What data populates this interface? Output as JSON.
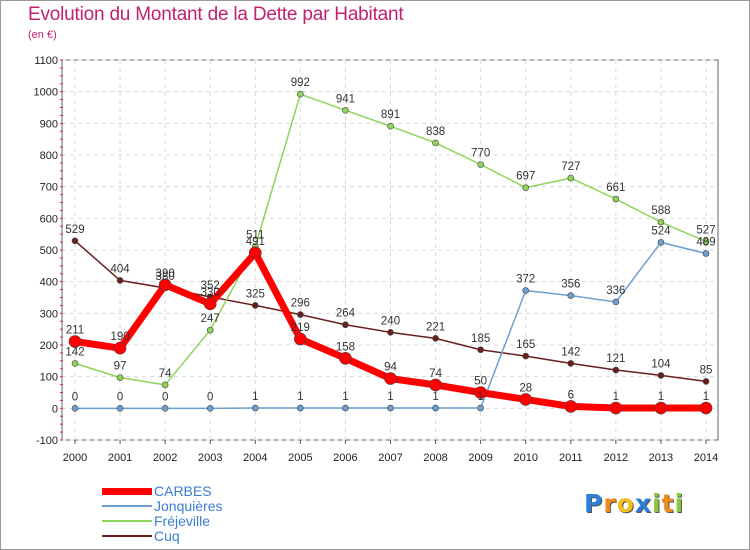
{
  "header": {
    "title": "Evolution du Montant de la Dette par Habitant",
    "unit": "(en €)"
  },
  "chart_data": {
    "type": "line",
    "title": "Evolution du Montant de la Dette par Habitant",
    "ylabel": "(en €)",
    "xlabel": "",
    "x": [
      "2000",
      "2001",
      "2002",
      "2003",
      "2004",
      "2005",
      "2006",
      "2007",
      "2008",
      "2009",
      "2010",
      "2011",
      "2012",
      "2013",
      "2014"
    ],
    "ylim": [
      -100,
      1100
    ],
    "yticks": [
      -100,
      0,
      100,
      200,
      300,
      400,
      500,
      600,
      700,
      800,
      900,
      1000,
      1100
    ],
    "grid": true,
    "legend_position": "bottom-left",
    "series": [
      {
        "name": "CARBES",
        "color": "#ff0000",
        "values": [
          211,
          190,
          390,
          330,
          491,
          219,
          158,
          94,
          74,
          50,
          28,
          6,
          1,
          1,
          1
        ]
      },
      {
        "name": "Jonquières",
        "color": "#6a9fd0",
        "values": [
          0,
          0,
          0,
          0,
          1,
          1,
          1,
          1,
          1,
          1,
          372,
          356,
          336,
          524,
          489
        ]
      },
      {
        "name": "Fréjeville",
        "color": "#8fd45a",
        "values": [
          142,
          97,
          74,
          247,
          511,
          992,
          941,
          891,
          838,
          770,
          697,
          727,
          661,
          588,
          527
        ]
      },
      {
        "name": "Cuq",
        "color": "#6b1e1e",
        "values": [
          529,
          404,
          380,
          352,
          325,
          296,
          264,
          240,
          221,
          185,
          165,
          142,
          121,
          104,
          85
        ]
      }
    ]
  },
  "logo": {
    "letters": [
      {
        "ch": "P",
        "color": "#2b7fd8"
      },
      {
        "ch": "r",
        "color": "#f08a1c"
      },
      {
        "ch": "o",
        "color": "#f2c01c"
      },
      {
        "ch": "x",
        "color": "#2b7fd8"
      },
      {
        "ch": "i",
        "color": "#8cc63f"
      },
      {
        "ch": "t",
        "color": "#f08a1c"
      },
      {
        "ch": "i",
        "color": "#8cc63f"
      }
    ]
  }
}
